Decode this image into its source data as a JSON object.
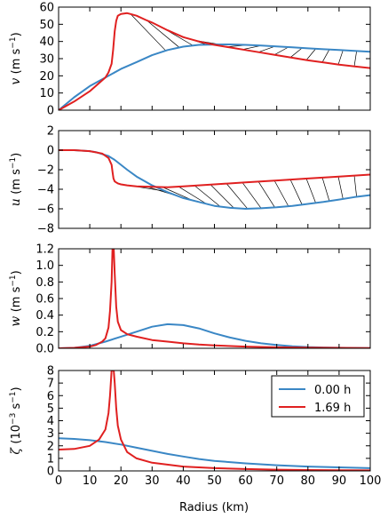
{
  "figure": {
    "xlabel": "Radius (km)"
  },
  "colors": {
    "blue": "#3a87c5",
    "red": "#e02020",
    "hatch": "#000000"
  },
  "chart_data": [
    {
      "type": "line",
      "panel": "v",
      "ylabel_var": "v",
      "ylabel_unit": "(m s",
      "ylabel_exp": "−1",
      "ylabel_close": ")",
      "xlim": [
        0,
        100
      ],
      "ylim": [
        0,
        60
      ],
      "xticks": [
        0,
        10,
        20,
        30,
        40,
        50,
        60,
        70,
        80,
        90,
        100
      ],
      "yticks": [
        0,
        10,
        20,
        30,
        40,
        50,
        60
      ],
      "grid": false,
      "series": [
        {
          "name": "0.00 h",
          "color": "#3a87c5",
          "x": [
            0,
            5,
            10,
            15,
            20,
            25,
            30,
            35,
            40,
            45,
            50,
            55,
            60,
            65,
            70,
            75,
            80,
            85,
            90,
            95,
            100
          ],
          "y": [
            0,
            7.5,
            14,
            19,
            24,
            28,
            32,
            35,
            37,
            38,
            38.2,
            38.3,
            38,
            37.6,
            37.1,
            36.6,
            36,
            35.5,
            35,
            34.5,
            34
          ]
        },
        {
          "name": "1.69 h",
          "color": "#e02020",
          "x": [
            0,
            5,
            10,
            15,
            16,
            17,
            17.5,
            18,
            18.5,
            19,
            20,
            21,
            22,
            23,
            24,
            25,
            28,
            30,
            35,
            40,
            45,
            50,
            55,
            60,
            65,
            70,
            75,
            80,
            85,
            90,
            95,
            100
          ],
          "y": [
            0,
            5,
            11,
            19,
            22,
            27,
            35,
            46,
            52,
            55,
            56,
            56.3,
            56.5,
            56,
            55.5,
            55,
            52.5,
            51,
            46.5,
            42.5,
            40,
            38,
            36.5,
            35,
            33.5,
            32,
            30.5,
            29,
            27.8,
            26.5,
            25.5,
            24.5
          ]
        }
      ]
    },
    {
      "type": "line",
      "panel": "u",
      "ylabel_var": "u",
      "ylabel_unit": "(m s",
      "ylabel_exp": "−1",
      "ylabel_close": ")",
      "xlim": [
        0,
        100
      ],
      "ylim": [
        -8,
        2
      ],
      "xticks": [
        0,
        10,
        20,
        30,
        40,
        50,
        60,
        70,
        80,
        90,
        100
      ],
      "yticks": [
        -8,
        -6,
        -4,
        -2,
        0,
        2
      ],
      "grid": false,
      "series": [
        {
          "name": "0.00 h",
          "color": "#3a87c5",
          "x": [
            0,
            5,
            10,
            12,
            14,
            16,
            18,
            20,
            22,
            25,
            30,
            35,
            40,
            45,
            50,
            55,
            60,
            65,
            70,
            75,
            80,
            85,
            90,
            95,
            100
          ],
          "y": [
            0,
            0,
            -0.1,
            -0.2,
            -0.4,
            -0.6,
            -1,
            -1.5,
            -2,
            -2.7,
            -3.6,
            -4.3,
            -4.9,
            -5.3,
            -5.7,
            -5.9,
            -6,
            -5.95,
            -5.85,
            -5.7,
            -5.5,
            -5.3,
            -5.05,
            -4.8,
            -4.6
          ]
        },
        {
          "name": "1.69 h",
          "color": "#e02020",
          "x": [
            0,
            5,
            10,
            14,
            16,
            17,
            17.3,
            17.6,
            18,
            18.5,
            19,
            20,
            22,
            25,
            30,
            35,
            40,
            50,
            60,
            70,
            80,
            90,
            100
          ],
          "y": [
            0,
            0,
            -0.1,
            -0.35,
            -0.8,
            -1.5,
            -2.2,
            -2.9,
            -3.2,
            -3.3,
            -3.4,
            -3.5,
            -3.6,
            -3.7,
            -3.75,
            -3.8,
            -3.7,
            -3.5,
            -3.3,
            -3.1,
            -2.9,
            -2.7,
            -2.5
          ]
        }
      ]
    },
    {
      "type": "line",
      "panel": "w",
      "ylabel_var": "w",
      "ylabel_unit": "(m s",
      "ylabel_exp": "−1",
      "ylabel_close": ")",
      "xlim": [
        0,
        100
      ],
      "ylim": [
        0,
        1.2
      ],
      "xticks": [
        0,
        10,
        20,
        30,
        40,
        50,
        60,
        70,
        80,
        90,
        100
      ],
      "yticks": [
        0,
        0.2,
        0.4,
        0.6,
        0.8,
        1.0,
        1.2
      ],
      "ytick_labels": [
        "0.0",
        "0.2",
        "0.4",
        "0.6",
        "0.8",
        "1.0",
        "1.2"
      ],
      "grid": false,
      "series": [
        {
          "name": "0.00 h",
          "color": "#3a87c5",
          "x": [
            0,
            5,
            10,
            15,
            20,
            25,
            30,
            35,
            40,
            45,
            50,
            55,
            60,
            65,
            70,
            75,
            80,
            85,
            90,
            95,
            100
          ],
          "y": [
            0,
            0.005,
            0.03,
            0.08,
            0.14,
            0.2,
            0.26,
            0.29,
            0.28,
            0.24,
            0.18,
            0.13,
            0.09,
            0.06,
            0.04,
            0.025,
            0.015,
            0.01,
            0.006,
            0.004,
            0.003
          ]
        },
        {
          "name": "1.69 h",
          "color": "#e02020",
          "x": [
            0,
            5,
            10,
            12,
            14,
            15,
            16,
            16.5,
            17,
            17.3,
            17.5,
            17.7,
            18,
            18.5,
            19,
            20,
            22,
            25,
            30,
            35,
            40,
            45,
            50,
            60,
            70,
            80,
            90,
            100
          ],
          "y": [
            0,
            0.005,
            0.02,
            0.04,
            0.08,
            0.12,
            0.25,
            0.45,
            0.8,
            1.2,
            1.2,
            1.2,
            0.9,
            0.5,
            0.32,
            0.22,
            0.17,
            0.14,
            0.1,
            0.08,
            0.06,
            0.045,
            0.035,
            0.02,
            0.012,
            0.008,
            0.005,
            0.003
          ]
        }
      ]
    },
    {
      "type": "line",
      "panel": "zeta",
      "ylabel_var": "ζ",
      "ylabel_unit": "(10",
      "ylabel_exp": "−3",
      "ylabel_mid": " s",
      "ylabel_exp2": "−1",
      "ylabel_close": ")",
      "xlim": [
        0,
        100
      ],
      "ylim": [
        0,
        8
      ],
      "xticks": [
        0,
        10,
        20,
        30,
        40,
        50,
        60,
        70,
        80,
        90,
        100
      ],
      "yticks": [
        0,
        1,
        2,
        3,
        4,
        5,
        6,
        7,
        8
      ],
      "grid": false,
      "legend": {
        "position": "upper-right",
        "entries": [
          "0.00 h",
          "1.69 h"
        ]
      },
      "series": [
        {
          "name": "0.00 h",
          "color": "#3a87c5",
          "x": [
            0,
            5,
            10,
            15,
            20,
            25,
            30,
            35,
            40,
            45,
            50,
            60,
            70,
            80,
            90,
            100
          ],
          "y": [
            2.6,
            2.55,
            2.45,
            2.3,
            2.1,
            1.85,
            1.6,
            1.35,
            1.15,
            0.95,
            0.8,
            0.6,
            0.45,
            0.35,
            0.28,
            0.22
          ]
        },
        {
          "name": "1.69 h",
          "color": "#e02020",
          "x": [
            0,
            5,
            10,
            13,
            15,
            16,
            16.5,
            17,
            17.3,
            17.5,
            17.7,
            18,
            18.5,
            19,
            20,
            22,
            25,
            30,
            40,
            50,
            60,
            70,
            80,
            90,
            100
          ],
          "y": [
            1.7,
            1.75,
            2,
            2.5,
            3.3,
            4.6,
            6,
            8,
            8,
            8,
            8,
            7,
            5,
            3.6,
            2.5,
            1.5,
            1,
            0.65,
            0.35,
            0.22,
            0.15,
            0.1,
            0.07,
            0.05,
            0.04
          ]
        }
      ]
    }
  ]
}
